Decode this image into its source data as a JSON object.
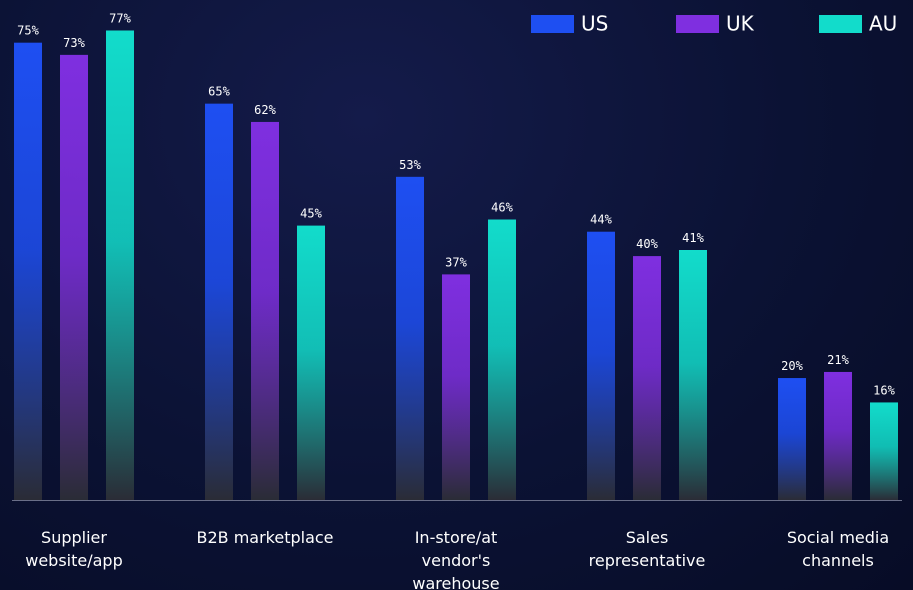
{
  "chart_data": {
    "type": "bar",
    "categories": [
      "Supplier website/app",
      "B2B marketplace",
      "In-store/at vendor's warehouse",
      "Sales representative",
      "Social media channels"
    ],
    "series": [
      {
        "name": "US",
        "color": "#1e4ff2",
        "values": [
          75,
          65,
          53,
          44,
          20
        ],
        "value_labels": [
          "75%",
          "65%",
          "53%",
          "44%",
          "20%"
        ]
      },
      {
        "name": "UK",
        "color": "#7f2fe0",
        "values": [
          73,
          62,
          37,
          40,
          21
        ],
        "value_labels": [
          "73%",
          "62%",
          "37%",
          "40%",
          "21%"
        ]
      },
      {
        "name": "AU",
        "color": "#12dccb",
        "values": [
          77,
          45,
          46,
          41,
          16
        ],
        "value_labels": [
          "77%",
          "45%",
          "46%",
          "41%",
          "16%"
        ]
      }
    ],
    "ylim": [
      0,
      82
    ],
    "legend": "top-right"
  }
}
